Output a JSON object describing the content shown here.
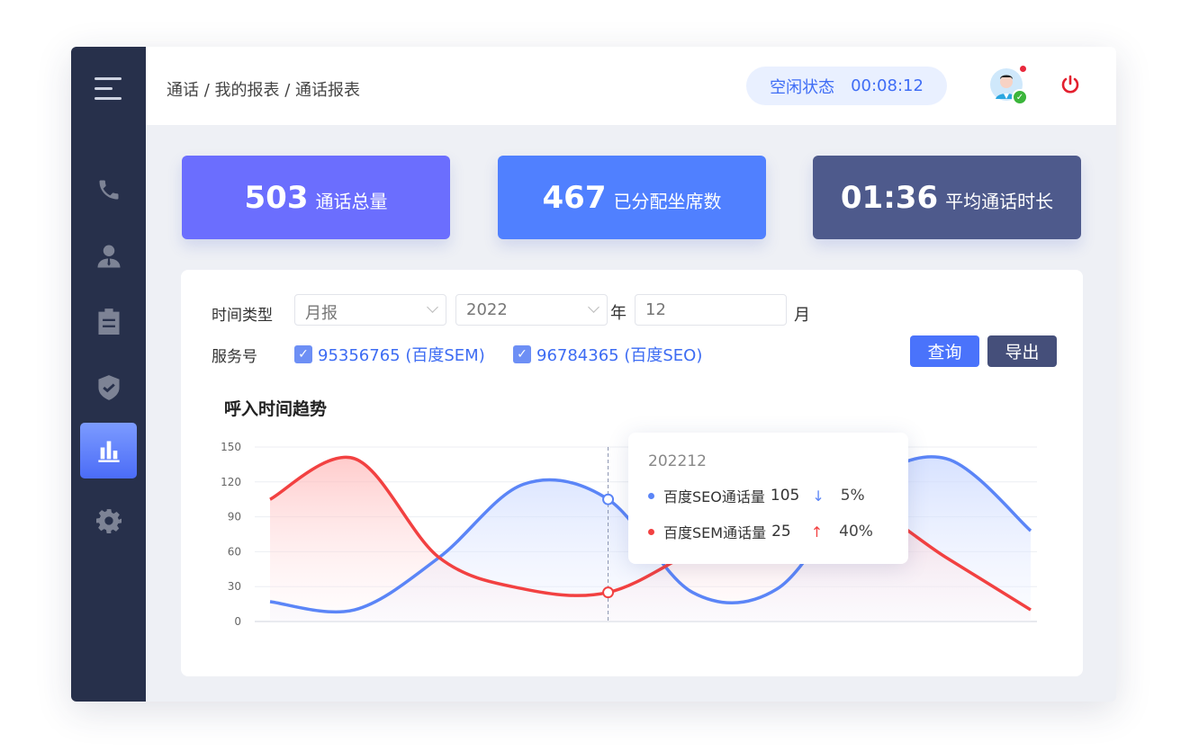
{
  "header": {
    "breadcrumb": "通话 / 我的报表 / 通话报表",
    "status_label": "空闲状态",
    "status_timer": "00:08:12"
  },
  "sidebar": {
    "items": [
      {
        "icon": "phone-icon"
      },
      {
        "icon": "user-icon"
      },
      {
        "icon": "clipboard-icon"
      },
      {
        "icon": "shield-check-icon"
      },
      {
        "icon": "bar-chart-icon",
        "active": true
      },
      {
        "icon": "gear-icon"
      }
    ]
  },
  "cards": [
    {
      "value": "503",
      "label": "通话总量",
      "color": "#6b6efe"
    },
    {
      "value": "467",
      "label": "已分配坐席数",
      "color": "#5080ff"
    },
    {
      "value": "01:36",
      "label": "平均通话时长",
      "color": "#4e5a8c"
    }
  ],
  "filters": {
    "time_type_label": "时间类型",
    "time_type_value": "月报",
    "year_value": "2022",
    "year_suffix": "年",
    "month_value": "12",
    "month_suffix": "月",
    "service_label": "服务号",
    "services": [
      "95356765 (百度SEM)",
      "96784365 (百度SEO)"
    ],
    "query_button": "查询",
    "export_button": "导出"
  },
  "chart_data": {
    "type": "line",
    "title": "呼入时间趋势",
    "ylim": [
      0,
      150
    ],
    "yticks": [
      0,
      30,
      60,
      90,
      120,
      150
    ],
    "grid": true,
    "series": [
      {
        "name": "百度SEO通话量",
        "color": "#5b85f7",
        "values": [
          17,
          10,
          55,
          118,
          105,
          25,
          28,
          115,
          140,
          78
        ]
      },
      {
        "name": "百度SEM通话量",
        "color": "#f24141",
        "values": [
          105,
          140,
          55,
          28,
          25,
          60,
          95,
          100,
          55,
          10
        ]
      }
    ],
    "hover_index": 4,
    "tooltip": {
      "title": "202212",
      "rows": [
        {
          "name": "百度SEO通话量",
          "value": "105",
          "trend": "down",
          "change": "5%"
        },
        {
          "name": "百度SEM通话量",
          "value": "25",
          "trend": "up",
          "change": "40%"
        }
      ]
    }
  }
}
